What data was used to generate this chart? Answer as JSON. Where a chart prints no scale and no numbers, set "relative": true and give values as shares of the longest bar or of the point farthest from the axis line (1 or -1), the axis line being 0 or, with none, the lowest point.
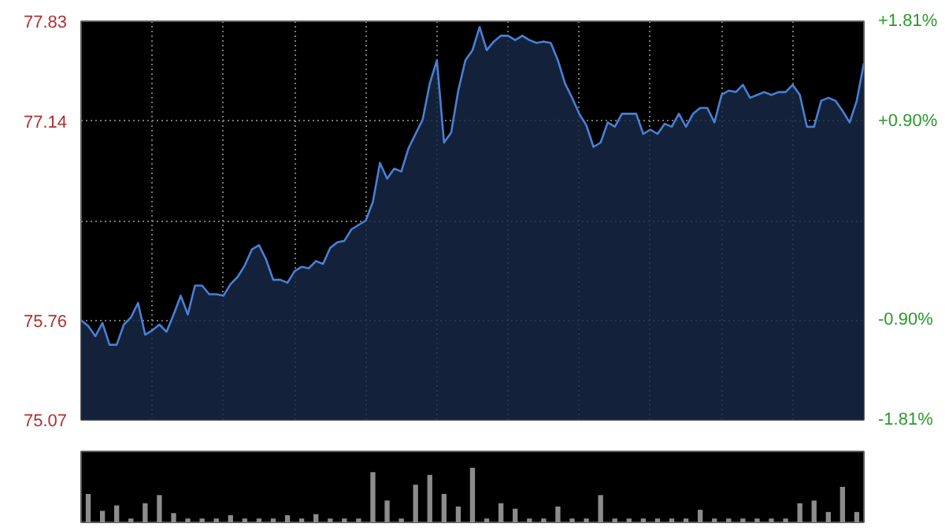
{
  "chart_data": [
    {
      "type": "area",
      "categories": [
        null,
        null,
        null,
        null,
        null,
        null,
        null,
        null,
        null,
        null,
        null,
        null,
        null,
        null,
        null,
        null,
        null,
        null,
        null,
        null,
        null,
        null,
        null,
        null,
        null,
        null,
        null,
        null,
        null,
        null,
        null,
        null,
        null,
        null,
        null,
        null,
        null,
        null,
        null,
        null,
        null,
        null,
        null,
        null,
        null,
        null,
        null,
        null,
        null,
        null,
        null,
        null,
        null,
        null,
        null,
        null,
        null,
        null,
        null,
        null,
        null,
        null,
        null,
        null,
        null,
        null,
        null,
        null,
        null,
        null,
        null,
        null,
        null,
        null,
        null,
        null,
        null,
        null,
        null,
        null,
        null,
        null,
        null,
        null,
        null,
        null,
        null,
        null,
        null,
        null,
        null,
        null,
        null,
        null,
        null,
        null,
        null,
        null,
        null,
        null,
        null,
        null,
        null,
        null,
        null,
        null,
        null,
        null,
        null,
        null,
        null
      ],
      "ylim": [
        75.07,
        77.83
      ],
      "yticks": [
        75.07,
        75.76,
        {
          "value": 76.45,
          "label": null
        },
        77.14,
        77.83
      ],
      "y2lim": [
        -1.81,
        1.81
      ],
      "y2ticks": [
        {
          "value": -1.81,
          "label": "-1.81%"
        },
        {
          "value": -0.9,
          "label": "-0.90%"
        },
        {
          "value": 0.9,
          "label": "+0.90%"
        },
        {
          "value": 1.81,
          "label": "+1.81%"
        }
      ],
      "grid": true,
      "series": [
        {
          "color": "#4a7fd4",
          "values": [
            75.76,
            75.72,
            75.65,
            75.74,
            75.59,
            75.59,
            75.73,
            75.78,
            75.88,
            75.66,
            75.69,
            75.73,
            75.68,
            75.8,
            75.93,
            75.8,
            76.0,
            76.0,
            75.94,
            75.94,
            75.93,
            76.01,
            76.06,
            76.14,
            76.25,
            76.28,
            76.18,
            76.04,
            76.04,
            76.02,
            76.1,
            76.13,
            76.12,
            76.17,
            76.15,
            76.26,
            76.3,
            76.31,
            76.39,
            76.42,
            76.45,
            76.58,
            76.85,
            76.74,
            76.81,
            76.79,
            76.95,
            77.05,
            77.15,
            77.4,
            77.56,
            76.99,
            77.06,
            77.35,
            77.56,
            77.63,
            77.79,
            77.63,
            77.69,
            77.73,
            77.73,
            77.7,
            77.73,
            77.7,
            77.68,
            77.69,
            77.68,
            77.56,
            77.4,
            77.3,
            77.19,
            77.11,
            76.96,
            76.99,
            77.13,
            77.1,
            77.19,
            77.19,
            77.19,
            77.05,
            77.08,
            77.05,
            77.12,
            77.1,
            77.19,
            77.1,
            77.19,
            77.23,
            77.23,
            77.13,
            77.32,
            77.35,
            77.34,
            77.39,
            77.3,
            77.32,
            77.34,
            77.32,
            77.34,
            77.34,
            77.39,
            77.32,
            77.1,
            77.1,
            77.28,
            77.3,
            77.28,
            77.21,
            77.13,
            77.28,
            77.54
          ]
        }
      ]
    },
    {
      "type": "bar",
      "relative": true,
      "categories": [
        null,
        null,
        null,
        null,
        null,
        null,
        null,
        null,
        null,
        null,
        null,
        null,
        null,
        null,
        null,
        null,
        null,
        null,
        null,
        null,
        null,
        null,
        null,
        null,
        null,
        null,
        null,
        null,
        null,
        null,
        null,
        null,
        null,
        null,
        null,
        null,
        null,
        null,
        null,
        null,
        null,
        null,
        null,
        null,
        null,
        null,
        null,
        null,
        null,
        null,
        null,
        null,
        null,
        null,
        null
      ],
      "series": [
        {
          "color": "#8c8c8c",
          "values": [
            0.52,
            0.21,
            0.31,
            0.07,
            0.35,
            0.5,
            0.17,
            0.07,
            0.07,
            0.07,
            0.13,
            0.07,
            0.07,
            0.07,
            0.13,
            0.07,
            0.15,
            0.07,
            0.07,
            0.07,
            0.92,
            0.4,
            0.07,
            0.69,
            0.87,
            0.52,
            0.29,
            1,
            0.07,
            0.35,
            0.25,
            0.07,
            0.07,
            0.29,
            0.07,
            0.07,
            0.5,
            0.07,
            0.07,
            0.07,
            0.07,
            0.07,
            0.07,
            0.23,
            0.07,
            0.07,
            0.07,
            0.07,
            0.07,
            0.07,
            0.35,
            0.4,
            0.19,
            0.65,
            0.19
          ]
        }
      ]
    }
  ]
}
